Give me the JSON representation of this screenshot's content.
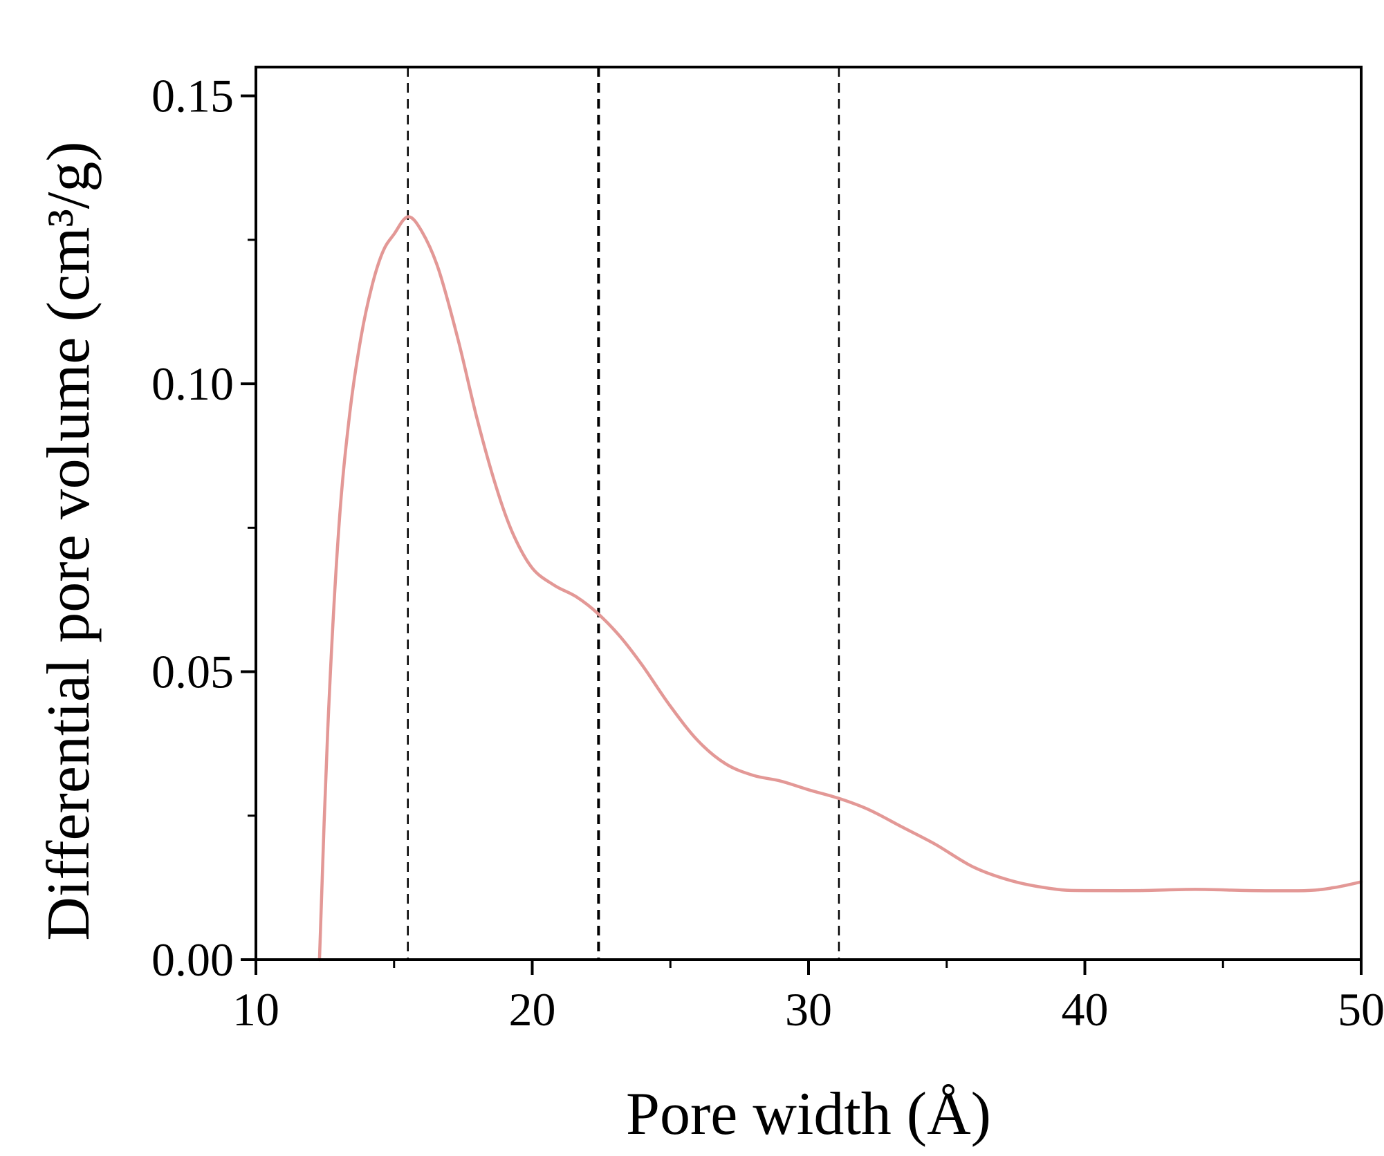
{
  "chart_data": {
    "type": "line",
    "title": "",
    "xlabel": "Pore width (Å)",
    "ylabel": "Differential pore volume (cm³/g)",
    "xlim": [
      10,
      50
    ],
    "ylim": [
      0,
      0.155
    ],
    "x_ticks": [
      "10",
      "20",
      "30",
      "40",
      "50"
    ],
    "y_ticks": [
      "0.00",
      "0.05",
      "0.10",
      "0.15"
    ],
    "grid": false,
    "legend": "none",
    "line_color": "#e39896",
    "reference_lines_x": [
      15.5,
      22.4,
      31.1
    ],
    "series": [
      {
        "x": [
          12.3,
          12.6,
          13.0,
          13.4,
          13.8,
          14.2,
          14.6,
          15.0,
          15.5,
          16.0,
          16.6,
          17.3,
          18.0,
          18.7,
          19.3,
          20.0,
          20.8,
          21.6,
          22.4,
          23.2,
          24.0,
          25.0,
          26.0,
          27.0,
          28.0,
          29.0,
          30.0,
          31.1,
          32.2,
          33.4,
          34.6,
          36.0,
          37.5,
          39.0,
          40.0,
          42.0,
          44.0,
          46.0,
          48.0,
          49.0,
          50.0
        ],
        "y": [
          0.0,
          0.04,
          0.075,
          0.095,
          0.108,
          0.117,
          0.123,
          0.126,
          0.129,
          0.1265,
          0.12,
          0.108,
          0.094,
          0.082,
          0.074,
          0.068,
          0.065,
          0.063,
          0.06,
          0.056,
          0.051,
          0.044,
          0.038,
          0.034,
          0.032,
          0.031,
          0.0295,
          0.028,
          0.026,
          0.023,
          0.02,
          0.016,
          0.0135,
          0.0122,
          0.012,
          0.012,
          0.0122,
          0.012,
          0.012,
          0.0125,
          0.0135
        ]
      }
    ]
  }
}
